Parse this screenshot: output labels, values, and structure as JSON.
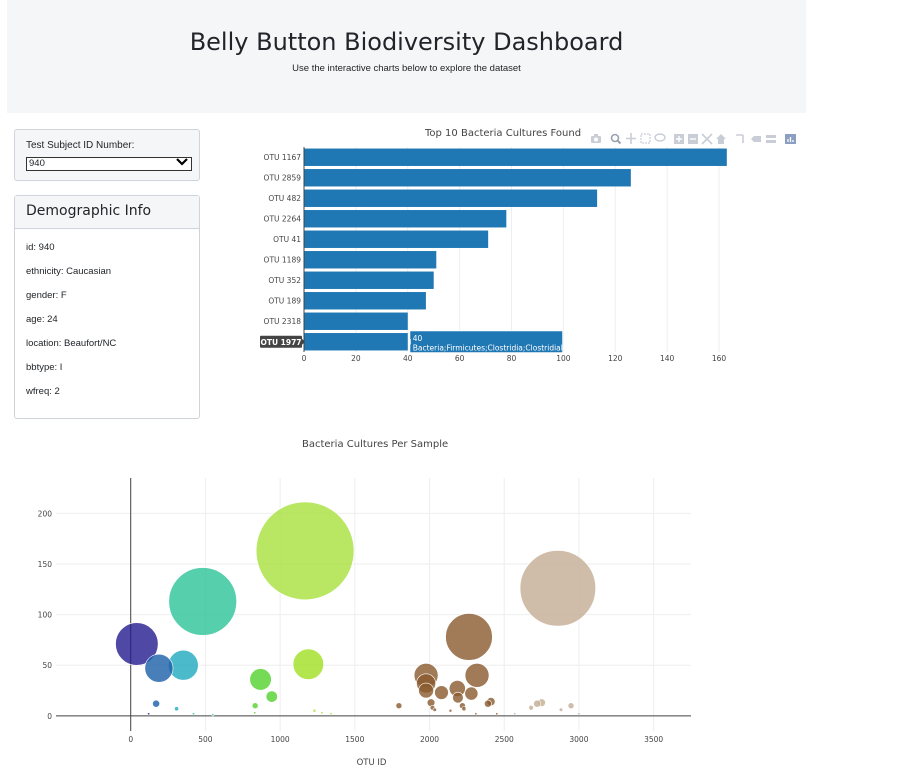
{
  "header": {
    "title": "Belly Button Biodiversity Dashboard",
    "subtitle": "Use the interactive charts below to explore the dataset"
  },
  "selector": {
    "label": "Test Subject ID Number:",
    "value": "940"
  },
  "demographics": {
    "title": "Demographic Info",
    "rows": [
      "id: 940",
      "ethnicity: Caucasian",
      "gender: F",
      "age: 24",
      "location: Beaufort/NC",
      "bbtype: I",
      "wfreq: 2"
    ]
  },
  "modebar_icons": [
    "camera-icon",
    "zoom-icon",
    "pan-icon",
    "box-select-icon",
    "lasso-icon",
    "zoom-in-icon",
    "zoom-out-icon",
    "autoscale-icon",
    "home-icon",
    "spike-lines-icon",
    "hover-closest-icon",
    "hover-compare-icon",
    "plotly-logo-icon"
  ],
  "tooltip": {
    "label": "OTU 1977",
    "value_text": "40",
    "detail_text": "Bacteria;Firmicutes;Clostridia;Clostridiales"
  },
  "colors": {
    "bar": "#1f77b4",
    "tooltip_bg": "#1f77b4",
    "label_bg": "#444444"
  },
  "chart_data": [
    {
      "type": "bar",
      "orientation": "horizontal",
      "title": "Top 10 Bacteria Cultures Found",
      "categories": [
        "OTU 1167",
        "OTU 2859",
        "OTU 482",
        "OTU 2264",
        "OTU 41",
        "OTU 1189",
        "OTU 352",
        "OTU 189",
        "OTU 2318",
        "OTU 1977"
      ],
      "values": [
        163,
        126,
        113,
        78,
        71,
        51,
        50,
        47,
        40,
        40
      ],
      "xlim": [
        0,
        165
      ],
      "xticks": [
        0,
        20,
        40,
        60,
        80,
        100,
        120,
        140,
        160
      ],
      "grid": true
    },
    {
      "type": "scatter",
      "title": "Bacteria Cultures Per Sample",
      "xlabel": "OTU ID",
      "ylabel": "",
      "xlim": [
        -500,
        3750
      ],
      "ylim": [
        -15,
        235
      ],
      "xticks": [
        0,
        500,
        1000,
        1500,
        2000,
        2500,
        3000,
        3500
      ],
      "yticks": [
        0,
        50,
        100,
        150,
        200
      ],
      "grid": true,
      "points": [
        {
          "x": 1167,
          "y": 163,
          "color": "#a8e03c"
        },
        {
          "x": 2859,
          "y": 126,
          "color": "#c4ac94"
        },
        {
          "x": 482,
          "y": 113,
          "color": "#2cc497"
        },
        {
          "x": 2264,
          "y": 78,
          "color": "#8a5a2e"
        },
        {
          "x": 41,
          "y": 71,
          "color": "#241a8f"
        },
        {
          "x": 1189,
          "y": 51,
          "color": "#a0e022"
        },
        {
          "x": 352,
          "y": 50,
          "color": "#1ea9bd"
        },
        {
          "x": 189,
          "y": 47,
          "color": "#1b5fa8"
        },
        {
          "x": 2318,
          "y": 40,
          "color": "#8a5a2e"
        },
        {
          "x": 1977,
          "y": 40,
          "color": "#8a5a2e"
        },
        {
          "x": 1977,
          "y": 32,
          "color": "#8a5a2e"
        },
        {
          "x": 1977,
          "y": 25,
          "color": "#8a5a2e"
        },
        {
          "x": 2186,
          "y": 27,
          "color": "#8a5a2e"
        },
        {
          "x": 2080,
          "y": 23,
          "color": "#8a5a2e"
        },
        {
          "x": 2280,
          "y": 22,
          "color": "#8a5a2e"
        },
        {
          "x": 2190,
          "y": 18,
          "color": "#8a5a2e"
        },
        {
          "x": 869,
          "y": 36,
          "color": "#52d12b"
        },
        {
          "x": 944,
          "y": 19,
          "color": "#52d12b"
        },
        {
          "x": 2010,
          "y": 13,
          "color": "#8a5a2e"
        },
        {
          "x": 2391,
          "y": 12,
          "color": "#8a5a2e"
        },
        {
          "x": 2411,
          "y": 14,
          "color": "#8a5a2e"
        },
        {
          "x": 2720,
          "y": 12,
          "color": "#c4ac94"
        },
        {
          "x": 2750,
          "y": 13,
          "color": "#c4ac94"
        },
        {
          "x": 2947,
          "y": 10,
          "color": "#c4ac94"
        },
        {
          "x": 2680,
          "y": 8,
          "color": "#c4ac94"
        },
        {
          "x": 2880,
          "y": 6,
          "color": "#c4ac94"
        },
        {
          "x": 1795,
          "y": 10,
          "color": "#8a5a2e"
        },
        {
          "x": 2220,
          "y": 10,
          "color": "#8a5a2e"
        },
        {
          "x": 2230,
          "y": 7,
          "color": "#8a5a2e"
        },
        {
          "x": 2035,
          "y": 6,
          "color": "#8a5a2e"
        },
        {
          "x": 2020,
          "y": 8,
          "color": "#8a5a2e"
        },
        {
          "x": 2140,
          "y": 5,
          "color": "#8a5a2e"
        },
        {
          "x": 833,
          "y": 10,
          "color": "#52d12b"
        },
        {
          "x": 830,
          "y": 3,
          "color": "#52d12b"
        },
        {
          "x": 1230,
          "y": 5,
          "color": "#a0e022"
        },
        {
          "x": 1280,
          "y": 3,
          "color": "#a0e022"
        },
        {
          "x": 1340,
          "y": 2,
          "color": "#a0e022"
        },
        {
          "x": 170,
          "y": 12,
          "color": "#1b5fa8"
        },
        {
          "x": 307,
          "y": 7,
          "color": "#1ea9bd"
        },
        {
          "x": 120,
          "y": 2,
          "color": "#241a8f"
        },
        {
          "x": 420,
          "y": 2,
          "color": "#2cc497"
        },
        {
          "x": 550,
          "y": 1,
          "color": "#2cc497"
        },
        {
          "x": 2310,
          "y": 2,
          "color": "#8a5a2e"
        },
        {
          "x": 2570,
          "y": 2,
          "color": "#c4ac94"
        },
        {
          "x": 2450,
          "y": 2,
          "color": "#8a5a2e"
        },
        {
          "x": 3000,
          "y": 2,
          "color": "#c4ac94"
        }
      ]
    }
  ]
}
